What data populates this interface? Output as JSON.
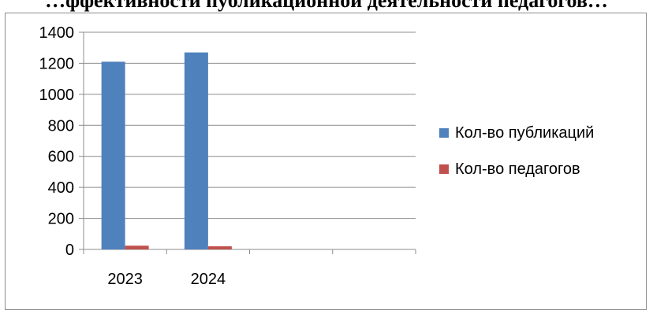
{
  "chart_data": {
    "type": "bar",
    "title": "",
    "title_visible_fragment": "…ффективности публикационной деятельности педагогов…",
    "xlabel": "",
    "ylabel": "",
    "categories": [
      "2023",
      "2024",
      "",
      ""
    ],
    "ylim": [
      0,
      1400
    ],
    "yticks": [
      0,
      200,
      400,
      600,
      800,
      1000,
      1200,
      1400
    ],
    "grid": true,
    "legend_position": "right",
    "series": [
      {
        "name": "Кол-во публикаций",
        "color": "#4F81BD",
        "values": [
          1210,
          1270,
          null,
          null
        ]
      },
      {
        "name": "Кол-во педагогов",
        "color": "#C0504D",
        "values": [
          24,
          20,
          null,
          null
        ]
      }
    ]
  }
}
